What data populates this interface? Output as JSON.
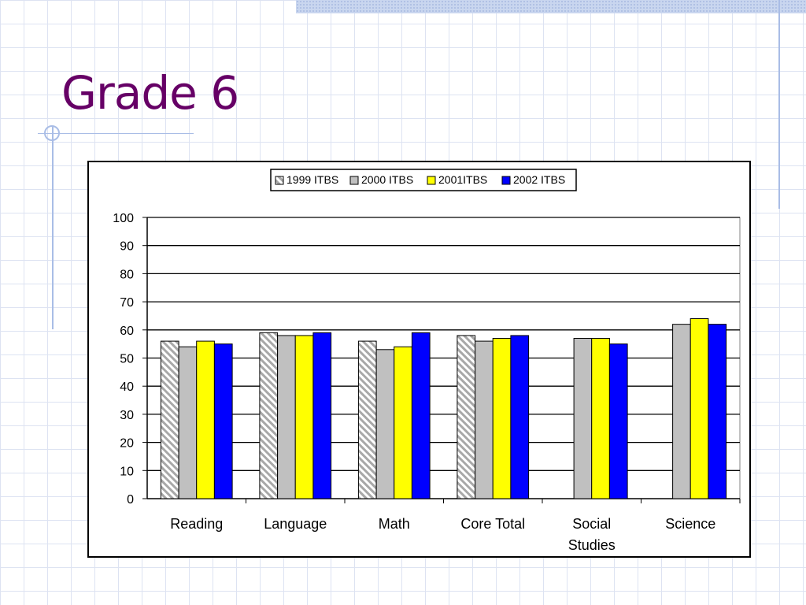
{
  "slide": {
    "title": "Grade 6"
  },
  "colors": {
    "title": "#660066",
    "gridline": "#000000"
  },
  "chart_data": {
    "type": "bar",
    "title": "",
    "xlabel": "",
    "ylabel": "",
    "ylim": [
      0,
      100
    ],
    "yticks": [
      "0",
      "10",
      "20",
      "30",
      "40",
      "50",
      "60",
      "70",
      "80",
      "90",
      "100"
    ],
    "grid": true,
    "legend_position": "top",
    "categories": [
      [
        "Reading"
      ],
      [
        "Language"
      ],
      [
        "Math"
      ],
      [
        "Core Total"
      ],
      [
        "Social",
        "Studies"
      ],
      [
        "Science"
      ]
    ],
    "series": [
      {
        "name": "1999 ITBS",
        "color": "#d4d4d4",
        "pattern": "diagonal-hatch",
        "values": [
          56,
          59,
          56,
          58,
          null,
          null
        ]
      },
      {
        "name": "2000 ITBS",
        "color": "#c0c0c0",
        "values": [
          54,
          58,
          53,
          56,
          57,
          62
        ]
      },
      {
        "name": "2001ITBS",
        "color": "#ffff00",
        "values": [
          56,
          58,
          54,
          57,
          57,
          64
        ]
      },
      {
        "name": "2002 ITBS",
        "color": "#0000ff",
        "values": [
          55,
          59,
          59,
          58,
          55,
          62
        ]
      }
    ]
  }
}
